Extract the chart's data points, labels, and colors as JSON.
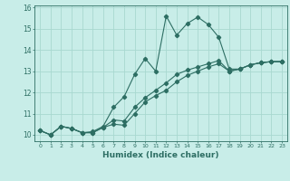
{
  "xlabel": "Humidex (Indice chaleur)",
  "bg_color": "#c8ede8",
  "line_color": "#2d6e63",
  "grid_color": "#a8d8d0",
  "ylim": [
    9.7,
    16.1
  ],
  "xlim": [
    -0.5,
    23.5
  ],
  "line1": [
    10.2,
    10.0,
    10.4,
    10.3,
    10.1,
    10.15,
    10.4,
    11.3,
    11.8,
    12.85,
    13.6,
    13.0,
    15.6,
    14.7,
    15.25,
    15.55,
    15.2,
    14.6,
    13.1,
    13.1,
    13.3,
    13.4,
    13.45,
    13.45
  ],
  "line2": [
    10.2,
    10.0,
    10.4,
    10.3,
    10.1,
    10.1,
    10.35,
    10.5,
    10.45,
    11.0,
    11.55,
    11.85,
    12.1,
    12.5,
    12.8,
    13.0,
    13.2,
    13.35,
    13.0,
    13.1,
    13.3,
    13.4,
    13.45,
    13.45
  ],
  "line3": [
    10.2,
    10.0,
    10.4,
    10.3,
    10.1,
    10.1,
    10.35,
    10.7,
    10.65,
    11.3,
    11.75,
    12.1,
    12.45,
    12.85,
    13.05,
    13.2,
    13.35,
    13.5,
    13.0,
    13.1,
    13.3,
    13.4,
    13.45,
    13.45
  ],
  "yticks": [
    10,
    11,
    12,
    13,
    14,
    15,
    16
  ],
  "figsize": [
    3.2,
    2.0
  ],
  "dpi": 100
}
